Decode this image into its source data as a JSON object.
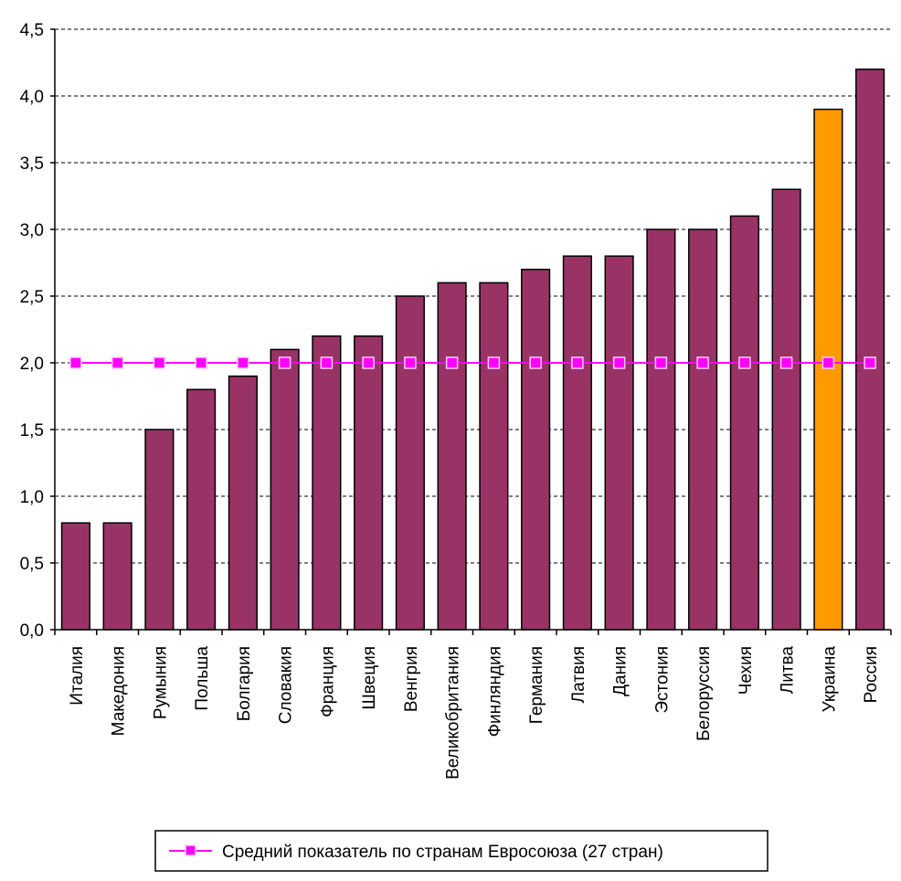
{
  "chart_data": {
    "type": "bar",
    "title": "",
    "xlabel": "",
    "ylabel": "",
    "ylim": [
      0,
      4.5
    ],
    "yticks": [
      "0,0",
      "0,5",
      "1,0",
      "1,5",
      "2,0",
      "2,5",
      "3,0",
      "3,5",
      "4,0",
      "4,5"
    ],
    "grid": true,
    "categories": [
      "Италия",
      "Македония",
      "Румыния",
      "Польша",
      "Болгария",
      "Словакия",
      "Франция",
      "Швеция",
      "Венгрия",
      "Великобритания",
      "Финляндия",
      "Германия",
      "Латвия",
      "Дания",
      "Эстония",
      "Белоруссия",
      "Чехия",
      "Литва",
      "Украина",
      "Россия"
    ],
    "series": [
      {
        "values": [
          0.8,
          0.8,
          1.5,
          1.8,
          1.9,
          2.1,
          2.2,
          2.2,
          2.5,
          2.6,
          2.6,
          2.7,
          2.8,
          2.8,
          3.0,
          3.0,
          3.1,
          3.3,
          3.9,
          4.2
        ]
      },
      {
        "name": "Средний показатель по странам Евросоюза (27 стран)",
        "type": "line",
        "values": [
          2.0,
          2.0,
          2.0,
          2.0,
          2.0,
          2.0,
          2.0,
          2.0,
          2.0,
          2.0,
          2.0,
          2.0,
          2.0,
          2.0,
          2.0,
          2.0,
          2.0,
          2.0,
          2.0,
          2.0
        ]
      }
    ],
    "highlight_category": "Украина",
    "colors": {
      "bar": "#993366",
      "highlight_bar": "#ff9900",
      "line": "#ff00ff",
      "marker_fill": "#ff00ff",
      "marker_stroke": "#ffccff"
    },
    "legend": {
      "position": "bottom-center",
      "label": "Средний показатель по странам Евросоюза (27 стран)"
    }
  }
}
